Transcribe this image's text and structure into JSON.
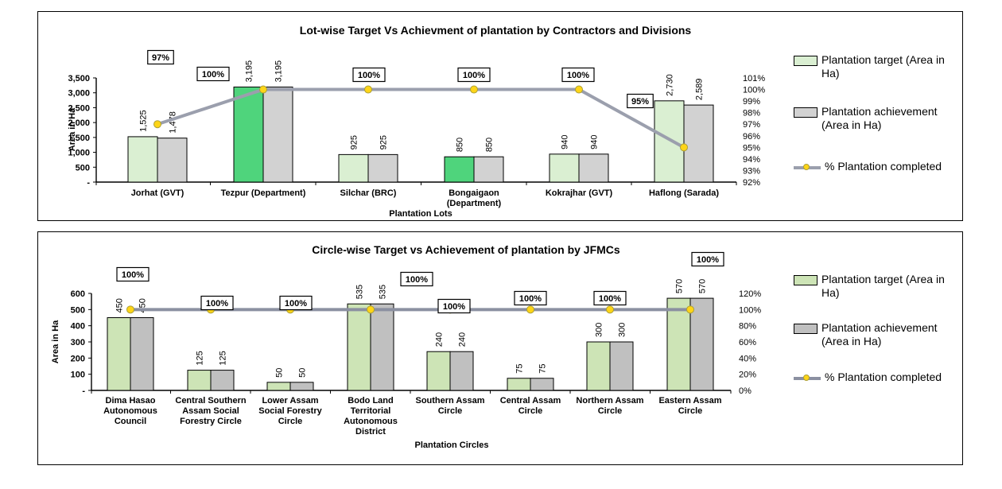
{
  "page": {
    "background": "#ffffff"
  },
  "chart_data": [
    {
      "type": "bar+line",
      "title": "Lot-wise Target Vs Achievment of plantation by Contractors and Divisions",
      "xlabel": "Plantation Lots",
      "ylabel": "Area in Ha",
      "categories": [
        [
          "Jorhat (GVT)"
        ],
        [
          "Tezpur (Department)"
        ],
        [
          "Silchar (BRC)"
        ],
        [
          "Bongaigaon",
          "(Department)"
        ],
        [
          "Kokrajhar (GVT)"
        ],
        [
          "Haflong (Sarada)"
        ]
      ],
      "series": [
        {
          "name": "Plantation target (Area in Ha)",
          "type": "bar",
          "values": [
            1525,
            3195,
            925,
            850,
            940,
            2730
          ],
          "labels": [
            "1,525",
            "3,195",
            "925",
            "850",
            "940",
            "2,730"
          ]
        },
        {
          "name": "Plantation achievement (Area in Ha)",
          "type": "bar",
          "values": [
            1478,
            3195,
            925,
            850,
            940,
            2589
          ],
          "labels": [
            "1,478",
            "3,195",
            "925",
            "850",
            "940",
            "2,589"
          ]
        },
        {
          "name": "% Plantation completed",
          "type": "line",
          "axis": "secondary",
          "values": [
            97,
            100,
            100,
            100,
            100,
            95
          ],
          "labels": [
            "97%",
            "100%",
            "100%",
            "100%",
            "100%",
            "95%"
          ]
        }
      ],
      "ylim": [
        0,
        3500
      ],
      "y_ticks": [
        "3,500",
        "3,000",
        "2,500",
        "2,000",
        "1,500",
        "1,000",
        "500",
        "-"
      ],
      "pct_lim": [
        92,
        101
      ],
      "pct_ticks": [
        "101%",
        "100%",
        "99%",
        "98%",
        "97%",
        "96%",
        "95%",
        "94%",
        "93%",
        "92%"
      ],
      "highlight_target_indices": [
        1,
        3
      ],
      "grid": "off",
      "legend_position": "right",
      "colors": {
        "target": "#daefd2",
        "target_highlight": "#4fd47c",
        "achievement": "#d2d2d2",
        "line": "#9b9fad",
        "marker_fill": "#fed517",
        "marker_stroke": "#ac9f38",
        "axis": "#000000"
      }
    },
    {
      "type": "bar+line",
      "title": "Circle-wise Target vs Achievement of plantation by JFMCs",
      "xlabel": "Plantation Circles",
      "ylabel": "Area in Ha",
      "categories": [
        [
          "Dima Hasao",
          "Autonomous",
          "Council"
        ],
        [
          "Central Southern",
          "Assam Social",
          "Forestry Circle"
        ],
        [
          "Lower Assam",
          "Social Forestry",
          "Circle"
        ],
        [
          "Bodo Land",
          "Territorial",
          "Autonomous",
          "District"
        ],
        [
          "Southern Assam",
          "Circle"
        ],
        [
          "Central Assam",
          "Circle"
        ],
        [
          "Northern Assam",
          "Circle"
        ],
        [
          "Eastern Assam",
          "Circle"
        ]
      ],
      "series": [
        {
          "name": "Plantation target (Area in Ha)",
          "type": "bar",
          "values": [
            450,
            125,
            50,
            535,
            240,
            75,
            300,
            570
          ],
          "labels": [
            "450",
            "125",
            "50",
            "535",
            "240",
            "75",
            "300",
            "570"
          ]
        },
        {
          "name": "Plantation achievement (Area in Ha)",
          "type": "bar",
          "values": [
            450,
            125,
            50,
            535,
            240,
            75,
            300,
            570
          ],
          "labels": [
            "450",
            "125",
            "50",
            "535",
            "240",
            "75",
            "300",
            "570"
          ]
        },
        {
          "name": "% Plantation completed",
          "type": "line",
          "axis": "secondary",
          "values": [
            100,
            100,
            100,
            100,
            100,
            100,
            100,
            100
          ],
          "labels": [
            "100%",
            "100%",
            "100%",
            "100%",
            "100%",
            "100%",
            "100%",
            "100%"
          ]
        }
      ],
      "ylim": [
        0,
        600
      ],
      "y_ticks": [
        "600",
        "500",
        "400",
        "300",
        "200",
        "100",
        "-"
      ],
      "pct_lim": [
        0,
        120
      ],
      "pct_ticks": [
        "120%",
        "100%",
        "80%",
        "60%",
        "40%",
        "20%",
        "0%"
      ],
      "highlight_target_indices": [],
      "grid": "off",
      "legend_position": "right",
      "colors": {
        "target": "#cde4b6",
        "target_highlight": "#4fd47c",
        "achievement": "#c0c0c0",
        "line": "#8b90a1",
        "marker_fill": "#fed517",
        "marker_stroke": "#ac9f38",
        "axis": "#000000"
      }
    }
  ]
}
